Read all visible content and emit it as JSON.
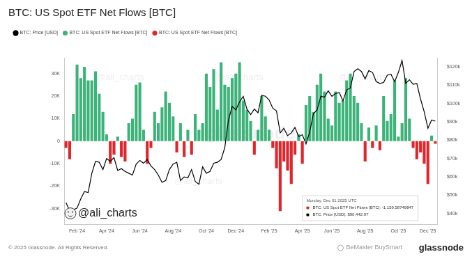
{
  "chart_data": {
    "type": "bar",
    "title": "BTC: US Spot ETF Net Flows [BTC]",
    "legend": "top-left",
    "grid": false,
    "categories": [
      null,
      null,
      null,
      "Feb '24",
      null,
      null,
      null,
      null,
      null,
      null,
      null,
      "Apr '24",
      null,
      null,
      null,
      null,
      null,
      null,
      null,
      null,
      "Jun '24",
      null,
      null,
      null,
      null,
      null,
      null,
      null,
      null,
      "Aug '24",
      null,
      null,
      null,
      null,
      null,
      null,
      null,
      null,
      "Oct '24",
      null,
      null,
      null,
      null,
      null,
      null,
      null,
      "Dec '24",
      null,
      null,
      null,
      null,
      null,
      null,
      null,
      null,
      "Feb '25",
      null,
      null,
      null,
      null,
      null,
      null,
      null,
      null,
      "Apr '25",
      null,
      null,
      null,
      null,
      null,
      null,
      null,
      "Jun '25",
      null,
      null,
      null,
      null,
      null,
      null,
      null,
      null,
      "Aug '25",
      null,
      null,
      null,
      null,
      null,
      null,
      null,
      null,
      "Oct '25",
      null,
      null,
      null,
      null,
      null,
      null,
      null,
      "Dec '25",
      null,
      null
    ],
    "series": [
      {
        "name": "BTC: US Spot ETF Net Flows [BTC]",
        "color": "#3db37a",
        "values": [
          null,
          null,
          12000,
          34000,
          28000,
          33000,
          27000,
          27000,
          31000,
          21000,
          13000,
          3000,
          null,
          null,
          2000,
          null,
          null,
          8000,
          10000,
          25000,
          26000,
          5000,
          null,
          null,
          13000,
          8000,
          15000,
          22000,
          17000,
          11000,
          null,
          8000,
          null,
          5000,
          null,
          12000,
          5000,
          8000,
          30000,
          24000,
          32000,
          14000,
          35000,
          25000,
          24000,
          28000,
          30000,
          35000,
          18000,
          14000,
          9000,
          null,
          5000,
          20000,
          11000,
          5000,
          null,
          null,
          null,
          null,
          null,
          null,
          null,
          3000,
          null,
          16000,
          20000,
          13000,
          25000,
          30000,
          22000,
          10000,
          7000,
          22000,
          17000,
          18000,
          27000,
          30000,
          20000,
          17000,
          8000,
          null,
          6000,
          null,
          7000,
          null,
          20000,
          9000,
          12000,
          27000,
          2000,
          8000,
          28000,
          10000,
          null,
          null,
          null,
          null,
          null,
          2500,
          null
        ]
      },
      {
        "name": "BTC: US Spot ETF Net Flows [BTC]",
        "color": "#e0262b",
        "values": [
          -3000,
          -8000,
          null,
          null,
          null,
          null,
          null,
          null,
          null,
          null,
          null,
          null,
          -10000,
          -6000,
          null,
          -7000,
          -9000,
          null,
          null,
          null,
          null,
          null,
          -10000,
          -3000,
          null,
          null,
          null,
          null,
          null,
          null,
          -5000,
          null,
          -7000,
          null,
          -6000,
          null,
          null,
          null,
          null,
          null,
          null,
          null,
          null,
          null,
          null,
          null,
          null,
          null,
          null,
          null,
          null,
          -6000,
          null,
          null,
          null,
          null,
          -3000,
          -12000,
          -31000,
          -9000,
          -13000,
          -19000,
          -6000,
          null,
          -10000,
          null,
          null,
          null,
          null,
          null,
          null,
          null,
          null,
          null,
          null,
          null,
          null,
          null,
          null,
          null,
          null,
          -9000,
          null,
          -3000,
          null,
          -4000,
          null,
          null,
          null,
          null,
          null,
          null,
          null,
          null,
          -3000,
          -8000,
          -5000,
          -10000,
          -19000,
          null,
          -1159.58749847
        ]
      },
      {
        "name": "BTC: Price [USD]",
        "color": "#000000",
        "type": "line",
        "axis": "y2",
        "values": [
          46000,
          41500,
          42000,
          43000,
          48000,
          52000,
          51500,
          62000,
          68500,
          68000,
          64000,
          70000,
          68500,
          70500,
          63500,
          64500,
          63000,
          62000,
          61000,
          67000,
          69000,
          67500,
          69500,
          66000,
          64000,
          61000,
          57000,
          58000,
          64000,
          67000,
          68000,
          58000,
          60000,
          59500,
          64000,
          57500,
          56000,
          65500,
          62000,
          63000,
          67500,
          68000,
          69500,
          76000,
          91000,
          98500,
          96500,
          101000,
          104000,
          97000,
          94000,
          97000,
          95000,
          104500,
          104000,
          102000,
          97500,
          96000,
          84000,
          86500,
          82500,
          84000,
          87000,
          82000,
          83000,
          78000,
          84500,
          94500,
          96500,
          104000,
          103500,
          107000,
          104000,
          105500,
          106000,
          101500,
          107500,
          108500,
          117500,
          119000,
          117500,
          113500,
          118000,
          117000,
          112000,
          111000,
          111500,
          115500,
          116000,
          112000,
          117000,
          123500,
          111000,
          113000,
          110500,
          111000,
          102500,
          95500,
          86500,
          91000,
          90442.97
        ]
      }
    ],
    "ylim": [
      -37000,
      37000
    ],
    "yticks": [
      {
        "value": -30000,
        "label": "-30K"
      },
      {
        "value": -20000,
        "label": "-20K"
      },
      {
        "value": -10000,
        "label": "-10K"
      },
      0,
      {
        "value": 10000,
        "label": "10K"
      },
      {
        "value": 20000,
        "label": "20K"
      },
      {
        "value": 30000,
        "label": "30K"
      }
    ],
    "y2lim": [
      34000,
      125000
    ],
    "y2ticks": [
      {
        "value": 40000,
        "label": "$40k"
      },
      {
        "value": 50000,
        "label": "$50k"
      },
      {
        "value": 60000,
        "label": "$60k"
      },
      {
        "value": 70000,
        "label": "$70k"
      },
      {
        "value": 80000,
        "label": "$80k"
      },
      {
        "value": 90000,
        "label": "$90k"
      },
      {
        "value": 100000,
        "label": "$100k"
      },
      {
        "value": 110000,
        "label": "$110k"
      },
      {
        "value": 120000,
        "label": "$120k"
      }
    ],
    "annotation": {
      "title": "Monday, Dec 01 2025 UTC",
      "lines": [
        {
          "text": "BTC: US Spot ETF Net Flows [BTC]: -1,159.58749847",
          "color": "#e0262b"
        },
        {
          "text": "BTC: Price [USD]: $90,442.97",
          "color": "#000000"
        }
      ]
    },
    "watermarks": [
      "@ali_charts",
      "glassnode"
    ],
    "credit": "@ali_charts",
    "footer": "© 2025 Glassnode. All Rights Reserved.",
    "logo": "glassnode",
    "source_mark": "BeMaster BuySmart"
  }
}
